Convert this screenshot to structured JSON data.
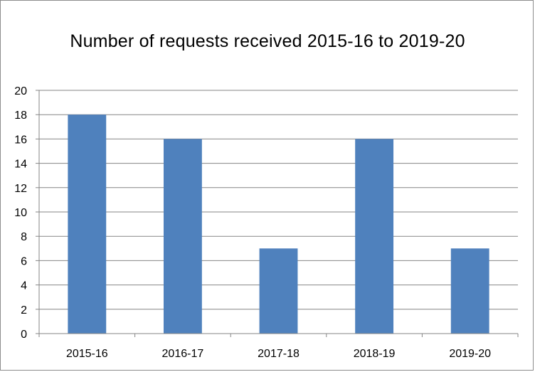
{
  "chart_data": {
    "type": "bar",
    "title": "Number of requests received 2015-16 to 2019-20",
    "categories": [
      "2015-16",
      "2016-17",
      "2017-18",
      "2018-19",
      "2019-20"
    ],
    "values": [
      18,
      16,
      7,
      16,
      7
    ],
    "xlabel": "",
    "ylabel": "",
    "ylim": [
      0,
      20
    ],
    "yticks": [
      0,
      2,
      4,
      6,
      8,
      10,
      12,
      14,
      16,
      18,
      20
    ],
    "grid": true,
    "legend": false,
    "colors": {
      "bar": "#4f81bd",
      "grid": "#868686",
      "axis": "#868686"
    }
  }
}
